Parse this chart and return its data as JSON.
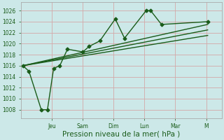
{
  "xlabel": "Pression niveau de la mer( hPa )",
  "bg_color": "#cce8e8",
  "grid_color": "#d4a8a8",
  "line_color": "#1a5c1a",
  "ylim": [
    1006.5,
    1027.5
  ],
  "yticks": [
    1008,
    1010,
    1012,
    1014,
    1016,
    1018,
    1020,
    1022,
    1024,
    1026
  ],
  "xtick_labels": [
    "Jeu",
    "Sam",
    "Dim",
    "Lun",
    "Mar",
    "M"
  ],
  "xtick_positions": [
    1,
    2,
    3,
    4,
    5,
    6
  ],
  "xlim": [
    0,
    6.5
  ],
  "main_x": [
    0.05,
    0.25,
    0.65,
    0.85,
    1.05,
    1.25,
    1.5,
    2.0,
    2.2,
    2.55,
    3.05,
    3.35,
    4.05,
    4.2,
    4.55,
    6.05
  ],
  "main_y": [
    1016,
    1015,
    1008,
    1008,
    1015.5,
    1016,
    1019,
    1018.5,
    1019.5,
    1020.5,
    1024.5,
    1021,
    1026,
    1026,
    1023.5,
    1024
  ],
  "trend_line1_x": [
    0.05,
    6.05
  ],
  "trend_line1_y": [
    1016,
    1023.5
  ],
  "trend_line2_x": [
    0.05,
    6.05
  ],
  "trend_line2_y": [
    1016,
    1022.5
  ],
  "trend_line3_x": [
    0.05,
    6.05
  ],
  "trend_line3_y": [
    1016,
    1021.5
  ],
  "marker_style": "D",
  "marker_size": 2.5,
  "line_width": 1.0,
  "tick_fontsize": 5.5,
  "xlabel_fontsize": 7.5
}
